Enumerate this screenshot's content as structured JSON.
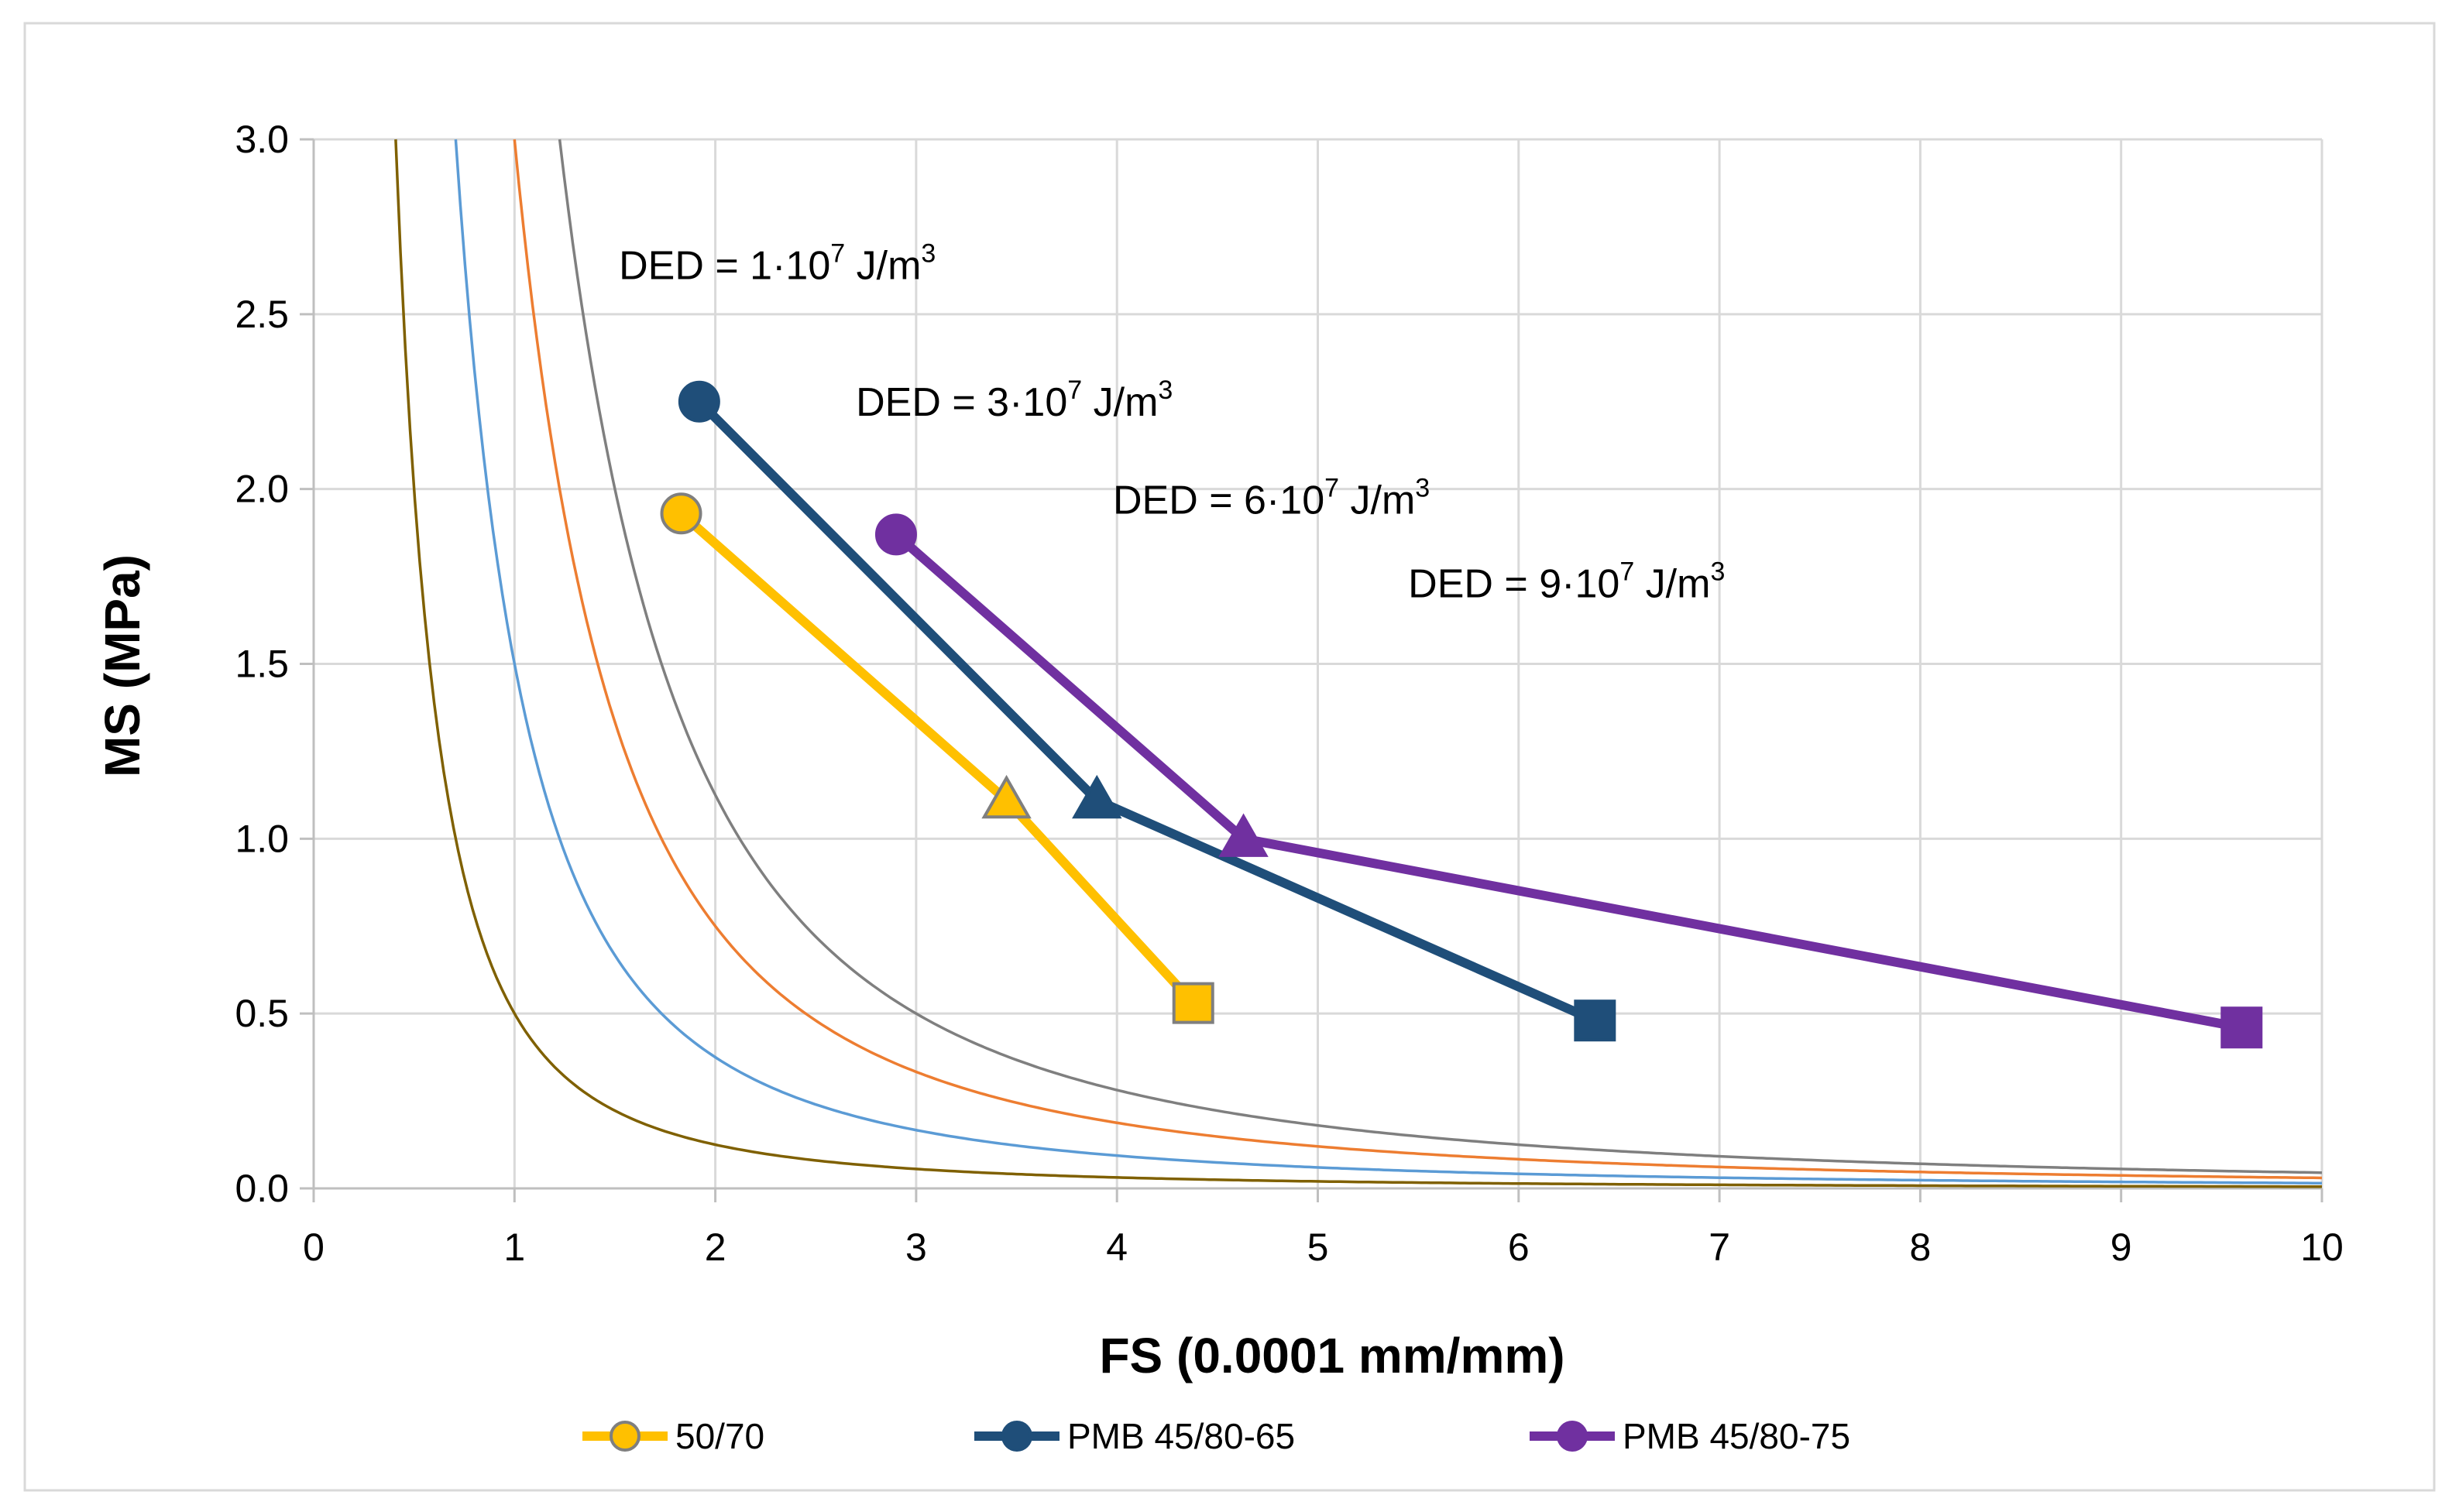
{
  "chart_data": {
    "type": "line",
    "title": "",
    "xlabel": "FS (0.0001 mm/mm)",
    "ylabel": "MS (MPa)",
    "xlim": [
      0,
      10
    ],
    "ylim": [
      0.0,
      3.0
    ],
    "x_ticks": [
      "0",
      "1",
      "2",
      "3",
      "4",
      "5",
      "6",
      "7",
      "8",
      "9",
      "10"
    ],
    "y_ticks": [
      "0.0",
      "0.5",
      "1.0",
      "1.5",
      "2.0",
      "2.5",
      "3.0"
    ],
    "grid": true,
    "legend_position": "bottom",
    "series": [
      {
        "name": "50/70",
        "color": "#FFC000",
        "marker_edge": "#7F7F7F",
        "points": [
          {
            "x": 1.83,
            "y": 1.93,
            "marker": "circle"
          },
          {
            "x": 3.45,
            "y": 1.11,
            "marker": "triangle"
          },
          {
            "x": 4.38,
            "y": 0.53,
            "marker": "square"
          }
        ]
      },
      {
        "name": "PMB 45/80-65",
        "color": "#1F4E79",
        "marker_edge": "#1F4E79",
        "points": [
          {
            "x": 1.92,
            "y": 2.25,
            "marker": "circle"
          },
          {
            "x": 3.9,
            "y": 1.11,
            "marker": "triangle"
          },
          {
            "x": 6.38,
            "y": 0.48,
            "marker": "square"
          }
        ]
      },
      {
        "name": "PMB 45/80-75",
        "color": "#7030A0",
        "marker_edge": "#7030A0",
        "points": [
          {
            "x": 2.9,
            "y": 1.87,
            "marker": "circle"
          },
          {
            "x": 4.63,
            "y": 1.0,
            "marker": "triangle"
          },
          {
            "x": 9.6,
            "y": 0.46,
            "marker": "square"
          }
        ]
      }
    ],
    "ded_curves": [
      {
        "k": 0.5,
        "color": "#7F6000",
        "label": "DED = 1·10",
        "sup": "7",
        "unit": " J/m",
        "unit_sup": "3",
        "label_x": 1.52,
        "label_y": 2.6
      },
      {
        "k": 1.5,
        "color": "#5B9BD5",
        "label": "DED = 3·10",
        "sup": "7",
        "unit": " J/m",
        "unit_sup": "3",
        "label_x": 2.7,
        "label_y": 2.21
      },
      {
        "k": 3.0,
        "color": "#ED7D31",
        "label": "DED = 6·10",
        "sup": "7",
        "unit": " J/m",
        "unit_sup": "3",
        "label_x": 3.98,
        "label_y": 1.93
      },
      {
        "k": 4.5,
        "color": "#7F7F7F",
        "label": "DED = 9·10",
        "sup": "7",
        "unit": " J/m",
        "unit_sup": "3",
        "label_x": 5.45,
        "label_y": 1.69
      }
    ]
  }
}
